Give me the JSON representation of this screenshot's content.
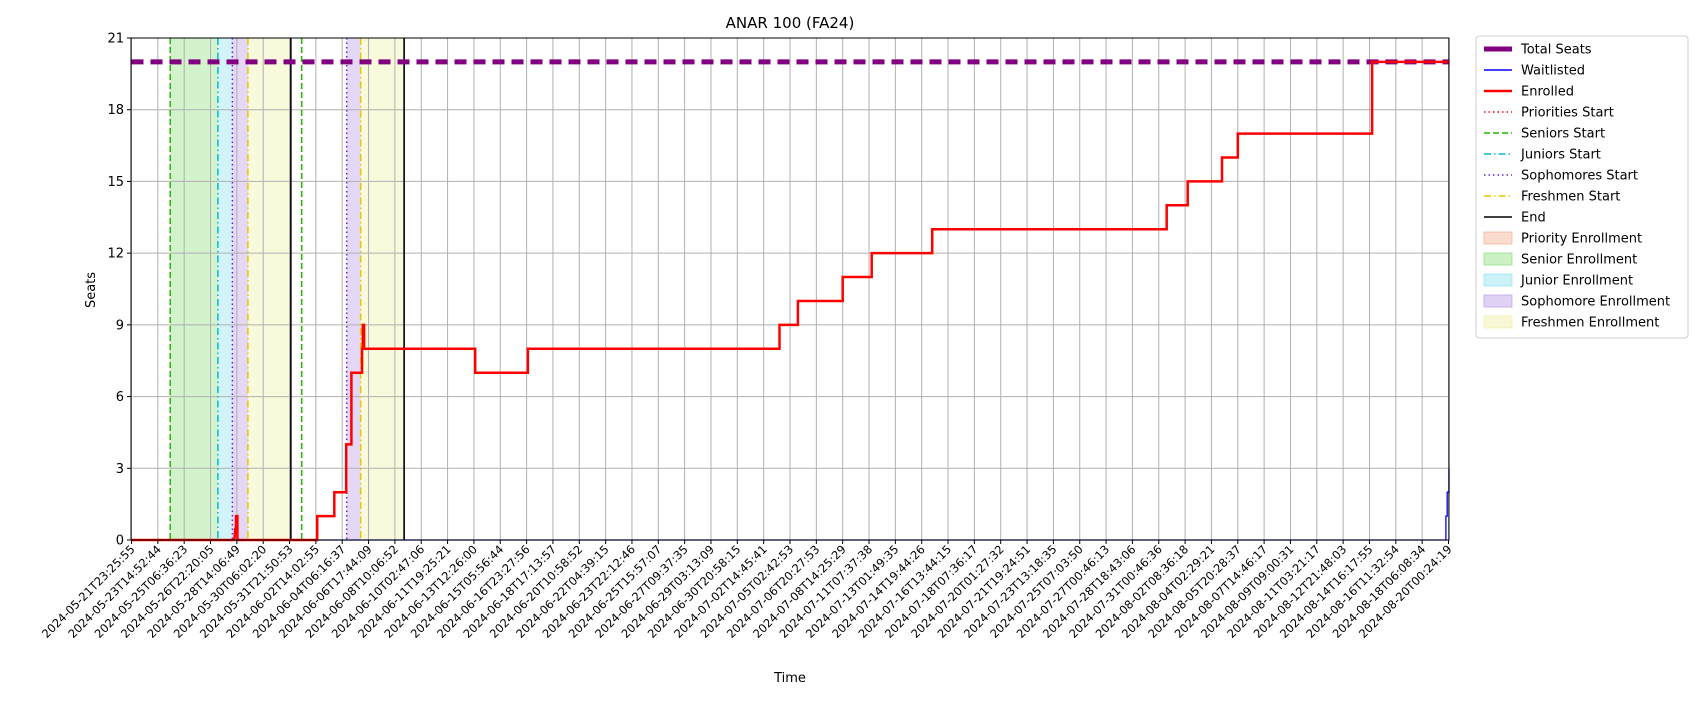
{
  "chart_data": {
    "type": "line",
    "title": "ANAR 100 (FA24)",
    "xlabel": "Time",
    "ylabel": "Seats",
    "ylim": [
      0,
      21
    ],
    "y_ticks": [
      0,
      3,
      6,
      9,
      12,
      15,
      18,
      21
    ],
    "grid": true,
    "legend_position": "outside-right",
    "x_ticks": [
      "2024-05-21T23:25:55",
      "2024-05-23T14:52:44",
      "2024-05-25T06:36:23",
      "2024-05-26T22:20:05",
      "2024-05-28T14:06:49",
      "2024-05-30T06:02:20",
      "2024-05-31T21:50:53",
      "2024-06-02T14:02:55",
      "2024-06-04T06:16:37",
      "2024-06-06T17:44:09",
      "2024-06-08T10:06:52",
      "2024-06-10T02:47:06",
      "2024-06-11T19:25:21",
      "2024-06-13T12:26:00",
      "2024-06-15T05:56:44",
      "2024-06-16T23:27:56",
      "2024-06-18T17:13:57",
      "2024-06-20T10:58:52",
      "2024-06-22T04:39:15",
      "2024-06-23T22:12:46",
      "2024-06-25T15:57:07",
      "2024-06-27T09:37:35",
      "2024-06-29T03:13:09",
      "2024-06-30T20:58:15",
      "2024-07-02T14:45:41",
      "2024-07-05T02:42:53",
      "2024-07-06T20:27:53",
      "2024-07-08T14:25:29",
      "2024-07-11T07:37:38",
      "2024-07-13T01:49:35",
      "2024-07-14T19:44:26",
      "2024-07-16T13:44:15",
      "2024-07-18T07:36:17",
      "2024-07-20T01:27:32",
      "2024-07-21T19:24:51",
      "2024-07-23T13:18:35",
      "2024-07-25T07:03:50",
      "2024-07-27T00:46:13",
      "2024-07-28T18:43:06",
      "2024-07-31T00:46:36",
      "2024-08-02T08:36:18",
      "2024-08-04T02:29:21",
      "2024-08-05T20:28:37",
      "2024-08-07T14:46:17",
      "2024-08-09T09:00:31",
      "2024-08-11T03:21:17",
      "2024-08-12T21:48:03",
      "2024-08-14T16:17:55",
      "2024-08-16T11:32:54",
      "2024-08-18T06:08:34",
      "2024-08-20T00:24:19"
    ],
    "series": [
      {
        "name": "Total Seats",
        "color": "#800080",
        "style": "dashed-thick",
        "points": [
          [
            0,
            20
          ],
          [
            50.2,
            20
          ]
        ]
      },
      {
        "name": "Waitlisted",
        "color": "#0000ff",
        "style": "solid-thin",
        "points": [
          [
            0,
            0
          ],
          [
            49.9,
            0
          ],
          [
            49.9,
            1
          ],
          [
            49.95,
            1
          ],
          [
            49.95,
            2
          ],
          [
            50.02,
            2
          ],
          [
            50.02,
            3
          ],
          [
            50.06,
            3
          ],
          [
            50.06,
            2
          ],
          [
            50.2,
            2
          ]
        ]
      },
      {
        "name": "Enrolled",
        "color": "#ff0000",
        "style": "solid-thick",
        "points": [
          [
            0,
            0
          ],
          [
            3.9,
            0
          ],
          [
            3.92,
            0.2
          ],
          [
            3.94,
            0.5
          ],
          [
            3.96,
            0.3
          ],
          [
            3.97,
            1
          ],
          [
            4.02,
            1
          ],
          [
            4.02,
            0
          ],
          [
            7.05,
            0
          ],
          [
            7.05,
            1
          ],
          [
            7.7,
            1
          ],
          [
            7.7,
            2
          ],
          [
            8.15,
            2
          ],
          [
            8.15,
            4
          ],
          [
            8.35,
            4
          ],
          [
            8.35,
            7
          ],
          [
            8.75,
            7
          ],
          [
            8.75,
            8
          ],
          [
            8.78,
            8
          ],
          [
            8.78,
            9
          ],
          [
            8.83,
            9
          ],
          [
            8.83,
            8
          ],
          [
            13.05,
            8
          ],
          [
            13.05,
            7
          ],
          [
            15.05,
            7
          ],
          [
            15.05,
            8
          ],
          [
            24.6,
            8
          ],
          [
            24.6,
            9
          ],
          [
            25.3,
            9
          ],
          [
            25.3,
            10
          ],
          [
            27.0,
            10
          ],
          [
            27.0,
            11
          ],
          [
            28.1,
            11
          ],
          [
            28.1,
            12
          ],
          [
            30.4,
            12
          ],
          [
            30.4,
            13
          ],
          [
            39.3,
            13
          ],
          [
            39.3,
            14
          ],
          [
            40.1,
            14
          ],
          [
            40.1,
            15
          ],
          [
            41.4,
            15
          ],
          [
            41.4,
            16
          ],
          [
            42.0,
            16
          ],
          [
            42.0,
            17
          ],
          [
            47.1,
            17
          ],
          [
            47.1,
            20
          ],
          [
            50.2,
            20
          ]
        ]
      }
    ],
    "vertical_lines": [
      {
        "name": "Priorities Start",
        "color": "#ff0000",
        "style": "dotted",
        "x": [
          1.47,
          6.46
        ]
      },
      {
        "name": "Seniors Start",
        "color": "#22bb00",
        "style": "dashed",
        "x": [
          1.47,
          6.46
        ]
      },
      {
        "name": "Juniors Start",
        "color": "#00bcd4",
        "style": "dashdot",
        "x": [
          3.28
        ]
      },
      {
        "name": "Sophomores Start",
        "color": "#6a1de0",
        "style": "dotted",
        "x": [
          3.83,
          8.17
        ]
      },
      {
        "name": "Freshmen Start",
        "color": "#e6c800",
        "style": "dashdot",
        "x": [
          4.42,
          8.7
        ]
      },
      {
        "name": "End",
        "color": "#000000",
        "style": "solid",
        "x": [
          6.05,
          10.35
        ]
      }
    ],
    "spans": [
      {
        "name": "Priority Enrollment",
        "color": "#f4a582",
        "x": [
          1.45,
          1.48
        ]
      },
      {
        "name": "Senior Enrollment",
        "color": "#7fdc6e",
        "x": [
          1.48,
          3.28
        ]
      },
      {
        "name": "Junior Enrollment",
        "color": "#7ee0ec",
        "x": [
          3.28,
          3.83
        ]
      },
      {
        "name": "Sophomore Enrollment",
        "color": "#b28ee4",
        "x": [
          3.83,
          4.42
        ]
      },
      {
        "name": "Freshmen Enrollment",
        "color": "#eeee99",
        "x": [
          4.42,
          6.05
        ]
      },
      {
        "name": "Sophomore Enrollment",
        "color": "#b28ee4",
        "x": [
          8.17,
          8.7
        ]
      },
      {
        "name": "Freshmen Enrollment",
        "color": "#eeee99",
        "x": [
          8.7,
          10.35
        ]
      }
    ],
    "legend": [
      {
        "label": "Total Seats",
        "kind": "line",
        "color": "#800080",
        "style": "dashed-thick"
      },
      {
        "label": "Waitlisted",
        "kind": "line",
        "color": "#0000ff",
        "style": "solid-thin"
      },
      {
        "label": "Enrolled",
        "kind": "line",
        "color": "#ff0000",
        "style": "solid-thick"
      },
      {
        "label": "Priorities Start",
        "kind": "line",
        "color": "#ff0000",
        "style": "dotted"
      },
      {
        "label": "Seniors Start",
        "kind": "line",
        "color": "#22bb00",
        "style": "dashed"
      },
      {
        "label": "Juniors Start",
        "kind": "line",
        "color": "#00bcd4",
        "style": "dashdot"
      },
      {
        "label": "Sophomores Start",
        "kind": "line",
        "color": "#6a1de0",
        "style": "dotted"
      },
      {
        "label": "Freshmen Start",
        "kind": "line",
        "color": "#e6c800",
        "style": "dashdot"
      },
      {
        "label": "End",
        "kind": "line",
        "color": "#000000",
        "style": "solid"
      },
      {
        "label": "Priority Enrollment",
        "kind": "patch",
        "color": "#f4a582"
      },
      {
        "label": "Senior Enrollment",
        "kind": "patch",
        "color": "#7fdc6e"
      },
      {
        "label": "Junior Enrollment",
        "kind": "patch",
        "color": "#7ee0ec"
      },
      {
        "label": "Sophomore Enrollment",
        "kind": "patch",
        "color": "#b28ee4"
      },
      {
        "label": "Freshmen Enrollment",
        "kind": "patch",
        "color": "#eeee99"
      }
    ]
  }
}
